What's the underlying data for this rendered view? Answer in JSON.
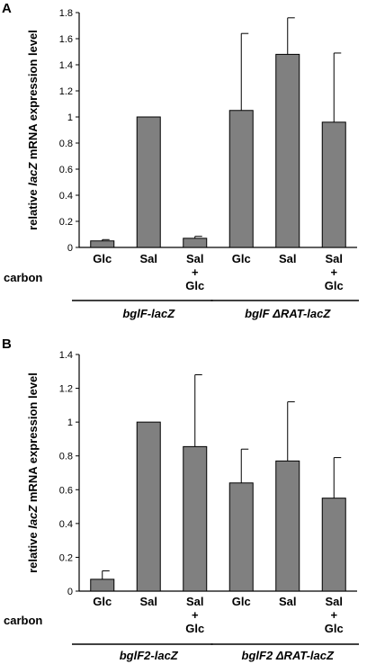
{
  "chart_data": [
    {
      "panel": "A",
      "type": "bar",
      "ylabel": {
        "pre": "relative ",
        "italic": "lacZ",
        "post": " mRNA expression level"
      },
      "ylim": [
        0,
        1.8
      ],
      "yticks": [
        0,
        0.2,
        0.4,
        0.6,
        0.8,
        1,
        1.2,
        1.4,
        1.6,
        1.8
      ],
      "row_label": "carbon",
      "categories": [
        {
          "line1": "Glc",
          "line2": "",
          "line3": ""
        },
        {
          "line1": "Sal",
          "line2": "",
          "line3": ""
        },
        {
          "line1": "Sal",
          "line2": "+",
          "line3": "Glc"
        },
        {
          "line1": "Glc",
          "line2": "",
          "line3": ""
        },
        {
          "line1": "Sal",
          "line2": "",
          "line3": ""
        },
        {
          "line1": "Sal",
          "line2": "+",
          "line3": "Glc"
        }
      ],
      "values": [
        0.05,
        1.0,
        0.07,
        1.05,
        1.48,
        0.96
      ],
      "errors": [
        0.01,
        0,
        0.015,
        0.59,
        0.28,
        0.53
      ],
      "groups": [
        {
          "label": "bglF-lacZ",
          "from": 0,
          "to": 2
        },
        {
          "label": "bglF ΔRAT-lacZ",
          "from": 3,
          "to": 5
        }
      ],
      "bar_color": "#808080"
    },
    {
      "panel": "B",
      "type": "bar",
      "ylabel": {
        "pre": "relative ",
        "italic": "lacZ",
        "post": " mRNA expression level"
      },
      "ylim": [
        0,
        1.4
      ],
      "yticks": [
        0,
        0.2,
        0.4,
        0.6,
        0.8,
        1,
        1.2,
        1.4
      ],
      "row_label": "carbon",
      "categories": [
        {
          "line1": "Glc",
          "line2": "",
          "line3": ""
        },
        {
          "line1": "Sal",
          "line2": "",
          "line3": ""
        },
        {
          "line1": "Sal",
          "line2": "+",
          "line3": "Glc"
        },
        {
          "line1": "Glc",
          "line2": "",
          "line3": ""
        },
        {
          "line1": "Sal",
          "line2": "",
          "line3": ""
        },
        {
          "line1": "Sal",
          "line2": "+",
          "line3": "Glc"
        }
      ],
      "values": [
        0.07,
        1.0,
        0.855,
        0.64,
        0.77,
        0.55
      ],
      "errors": [
        0.05,
        0,
        0.425,
        0.2,
        0.35,
        0.24
      ],
      "groups": [
        {
          "label": "bglF2-lacZ",
          "from": 0,
          "to": 2
        },
        {
          "label": "bglF2 ΔRAT-lacZ",
          "from": 3,
          "to": 5
        }
      ],
      "bar_color": "#808080"
    }
  ]
}
